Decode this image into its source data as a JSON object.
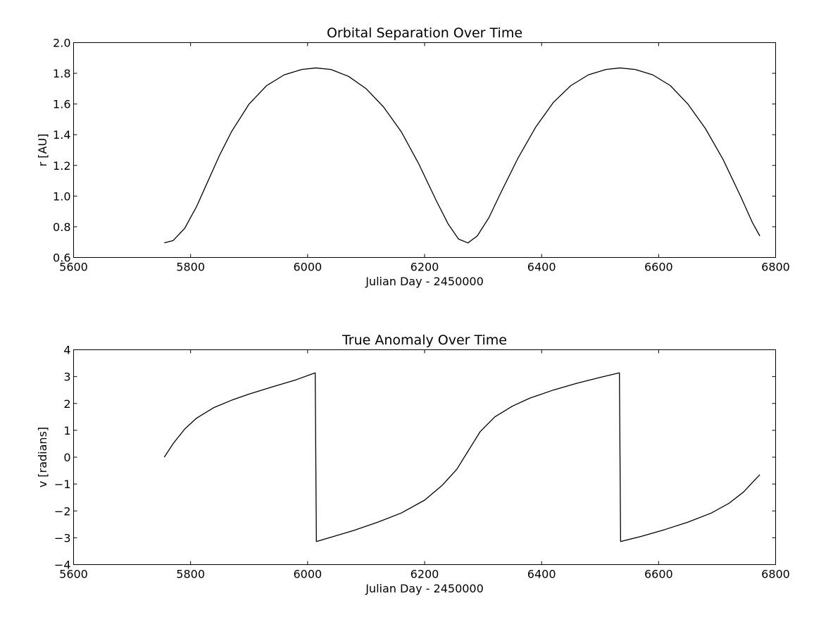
{
  "chart_data": [
    {
      "type": "line",
      "title": "Orbital Separation Over Time",
      "xlabel": "Julian Day - 2450000",
      "ylabel": "r [AU]",
      "xlim": [
        5600,
        6800
      ],
      "ylim": [
        0.6,
        2.0
      ],
      "xticks": [
        5600,
        5800,
        6000,
        6200,
        6400,
        6600,
        6800
      ],
      "xtick_labels": [
        "5600",
        "5800",
        "6000",
        "6200",
        "6400",
        "6600",
        "6800"
      ],
      "yticks": [
        0.6,
        0.8,
        1.0,
        1.2,
        1.4,
        1.6,
        1.8,
        2.0
      ],
      "ytick_labels": [
        "0.6",
        "0.8",
        "1.0",
        "1.2",
        "1.4",
        "1.6",
        "1.8",
        "2.0"
      ],
      "grid": false,
      "series": [
        {
          "color": "#000000",
          "x": [
            5755,
            5770,
            5790,
            5810,
            5830,
            5850,
            5870,
            5900,
            5930,
            5960,
            5990,
            6014,
            6040,
            6070,
            6100,
            6130,
            6160,
            6190,
            6220,
            6240,
            6258,
            6274,
            6290,
            6310,
            6330,
            6360,
            6390,
            6420,
            6450,
            6480,
            6510,
            6534,
            6560,
            6590,
            6620,
            6650,
            6680,
            6710,
            6740,
            6760,
            6773
          ],
          "y": [
            0.695,
            0.71,
            0.79,
            0.93,
            1.1,
            1.27,
            1.42,
            1.6,
            1.72,
            1.79,
            1.825,
            1.835,
            1.825,
            1.78,
            1.7,
            1.58,
            1.42,
            1.21,
            0.97,
            0.82,
            0.72,
            0.695,
            0.74,
            0.86,
            1.02,
            1.25,
            1.45,
            1.61,
            1.72,
            1.79,
            1.825,
            1.835,
            1.825,
            1.79,
            1.72,
            1.6,
            1.44,
            1.24,
            1.0,
            0.83,
            0.74
          ]
        }
      ]
    },
    {
      "type": "line",
      "title": "True Anomaly Over Time",
      "xlabel": "Julian Day - 2450000",
      "ylabel": "v [radians]",
      "xlim": [
        5600,
        6800
      ],
      "ylim": [
        -4,
        4
      ],
      "xticks": [
        5600,
        5800,
        6000,
        6200,
        6400,
        6600,
        6800
      ],
      "xtick_labels": [
        "5600",
        "5800",
        "6000",
        "6200",
        "6400",
        "6600",
        "6800"
      ],
      "yticks": [
        -4,
        -3,
        -2,
        -1,
        0,
        1,
        2,
        3,
        4
      ],
      "ytick_labels": [
        "−4",
        "−3",
        "−2",
        "−1",
        "0",
        "1",
        "2",
        "3",
        "4"
      ],
      "grid": false,
      "series": [
        {
          "color": "#000000",
          "x": [
            5755,
            5770,
            5790,
            5810,
            5840,
            5870,
            5900,
            5940,
            5980,
            6013,
            6015,
            6040,
            6080,
            6120,
            6160,
            6200,
            6230,
            6255,
            6275,
            6295,
            6320,
            6350,
            6380,
            6420,
            6460,
            6500,
            6533,
            6535,
            6570,
            6610,
            6650,
            6690,
            6720,
            6745,
            6760,
            6773
          ],
          "y": [
            0.0,
            0.5,
            1.05,
            1.45,
            1.85,
            2.12,
            2.35,
            2.62,
            2.88,
            3.14,
            -3.14,
            -2.98,
            -2.72,
            -2.42,
            -2.08,
            -1.6,
            -1.05,
            -0.45,
            0.25,
            0.95,
            1.5,
            1.9,
            2.2,
            2.5,
            2.75,
            2.97,
            3.14,
            -3.14,
            -2.95,
            -2.7,
            -2.42,
            -2.08,
            -1.72,
            -1.3,
            -0.95,
            -0.65
          ]
        }
      ]
    }
  ]
}
